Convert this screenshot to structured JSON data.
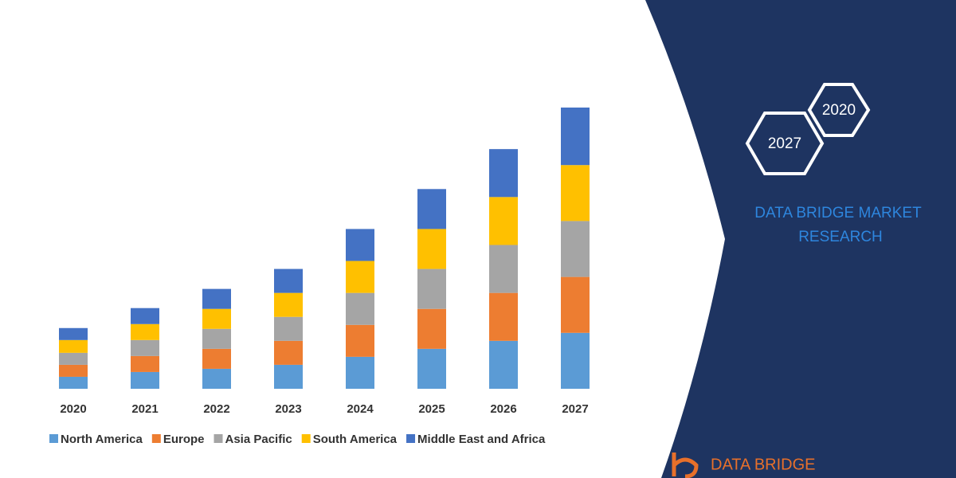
{
  "chart_data": {
    "type": "stacked-bar",
    "categories": [
      "2020",
      "2021",
      "2022",
      "2023",
      "2024",
      "2025",
      "2026",
      "2027"
    ],
    "series": [
      {
        "name": "North America",
        "color": "#5b9bd5",
        "values": [
          15,
          21,
          25,
          30,
          40,
          50,
          60,
          70
        ]
      },
      {
        "name": "Europe",
        "color": "#ed7d31",
        "values": [
          15,
          20,
          25,
          30,
          40,
          50,
          60,
          70
        ]
      },
      {
        "name": "Asia Pacific",
        "color": "#a5a5a5",
        "values": [
          15,
          20,
          25,
          30,
          40,
          50,
          60,
          70
        ]
      },
      {
        "name": "South America",
        "color": "#ffc000",
        "values": [
          16,
          20,
          25,
          30,
          40,
          50,
          60,
          70
        ]
      },
      {
        "name": "Middle East and Africa",
        "color": "#4472c4",
        "values": [
          15,
          20,
          25,
          30,
          40,
          50,
          60,
          72
        ]
      }
    ],
    "legend": "bottom"
  },
  "badge": {
    "hexagons": [
      "2027",
      "2020"
    ],
    "brand": [
      "DATA BRIDGE MARKET",
      "RESEARCH"
    ],
    "logo": "DATA BRIDGE"
  }
}
